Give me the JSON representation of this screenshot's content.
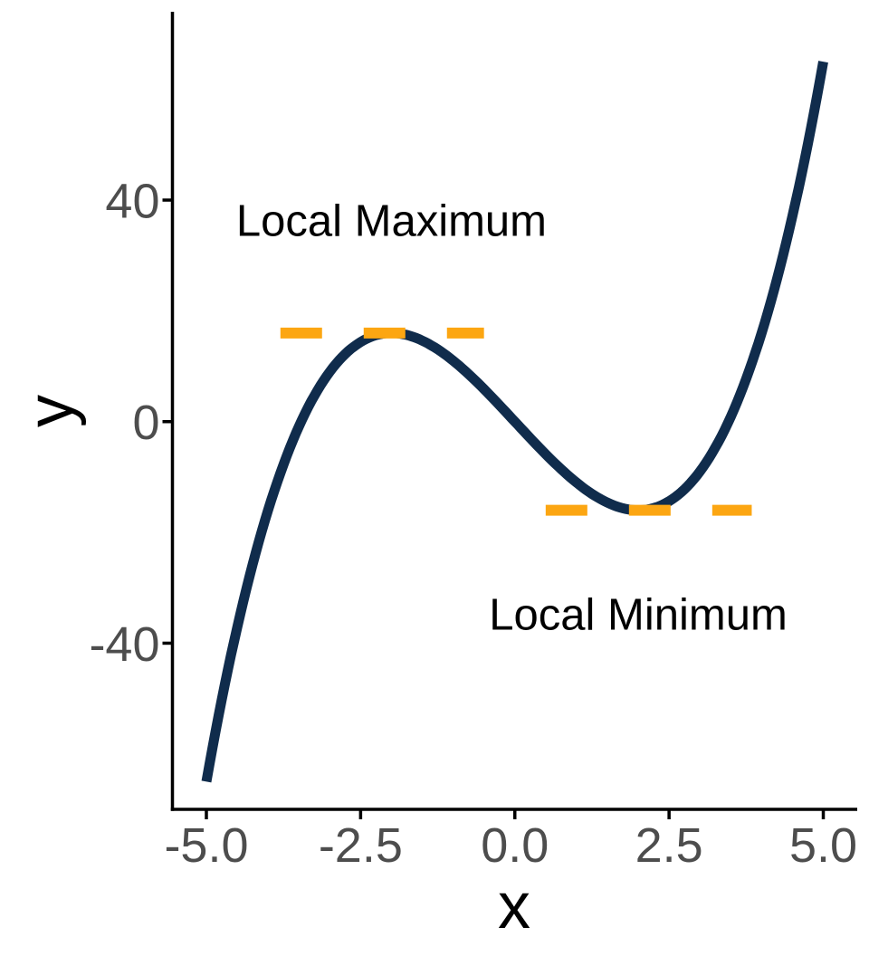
{
  "figure": {
    "background_color": "#FFFFFF"
  },
  "chart_data": {
    "type": "line",
    "title": "",
    "xlabel": "x",
    "ylabel": "y",
    "grid": false,
    "legend": false,
    "xlim": [
      -5.55,
      5.55
    ],
    "ylim": [
      -70,
      74
    ],
    "x_ticks": [
      -5.0,
      -2.5,
      0.0,
      2.5,
      5.0
    ],
    "x_tick_labels": [
      "-5.0",
      "-2.5",
      "0.0",
      "2.5",
      "5.0"
    ],
    "y_ticks": [
      40,
      0,
      -40
    ],
    "y_tick_labels": [
      "40",
      "0",
      "-40"
    ],
    "curve": {
      "name": "cubic-function",
      "formula": "y = x^3 - 12x",
      "poly_coefficients": [
        1,
        0,
        -12,
        0
      ],
      "x_range": [
        -5,
        5
      ],
      "sample_step": 0.05,
      "stroke_width": 11
    },
    "key_points": [
      {
        "name": "local-maximum",
        "x": -2,
        "y": 16
      },
      {
        "name": "local-minimum",
        "x": 2,
        "y": -16
      }
    ],
    "tangent_segments": [
      {
        "name": "local-maximum-tangent",
        "y": 16,
        "x_start": -3.8,
        "x_end": -0.5
      },
      {
        "name": "local-minimum-tangent",
        "y": -16,
        "x_start": 0.5,
        "x_end": 3.84
      }
    ],
    "dash_pattern": [
      46,
      46
    ],
    "dash_stroke_width": 12,
    "annotations": [
      {
        "name": "local-maximum-label",
        "text": "Local Maximum",
        "x": -2,
        "y": 36
      },
      {
        "name": "local-minimum-label",
        "text": "Local Minimum",
        "x": 2,
        "y": -35
      }
    ],
    "colors": {
      "curve": "#102C4C",
      "tangent_dash": "#FCA612",
      "axis_line": "#000000",
      "tick_label": "#4D4D4D",
      "axis_title": "#000000",
      "annotation_text": "#000000",
      "background": "#FFFFFF"
    }
  }
}
